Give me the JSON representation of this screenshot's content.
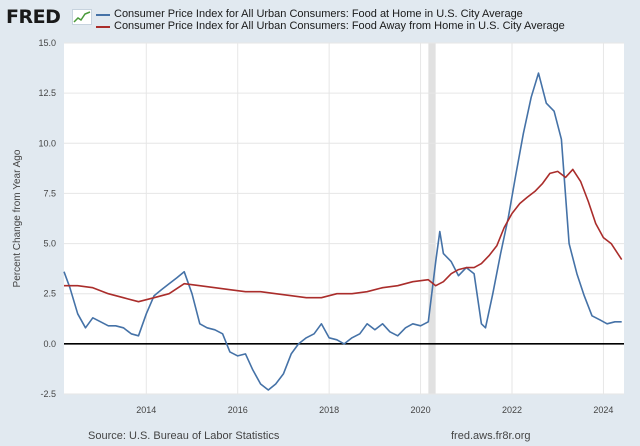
{
  "header": {
    "logo_text": "FRED",
    "logo_icon": "graph-icon"
  },
  "footer": {
    "source": "Source: U.S. Bureau of Labor Statistics",
    "url": "fred.aws.fr8r.org"
  },
  "chart_data": {
    "type": "line",
    "ylabel": "Percent Change from Year Ago",
    "xlabel": "",
    "ylim": [
      -2.5,
      15.0
    ],
    "xlim": [
      2012.2,
      2024.45
    ],
    "yticks": [
      -2.5,
      0.0,
      2.5,
      5.0,
      7.5,
      10.0,
      12.5,
      15.0
    ],
    "ytick_labels": [
      "-2.5",
      "0.0",
      "2.5",
      "5.0",
      "7.5",
      "10.0",
      "12.5",
      "15.0"
    ],
    "xticks": [
      2014,
      2016,
      2018,
      2020,
      2022,
      2024
    ],
    "xtick_labels": [
      "2014",
      "2016",
      "2018",
      "2020",
      "2022",
      "2024"
    ],
    "grid": true,
    "zero_line": true,
    "legend_position": "top",
    "recession_band": [
      2020.17,
      2020.33
    ],
    "series": [
      {
        "name": "Consumer Price Index for All Urban Consumers: Food at Home in U.S. City Average",
        "color": "#4572a7",
        "x": [
          2012.2,
          2012.33,
          2012.5,
          2012.67,
          2012.83,
          2013.0,
          2013.17,
          2013.33,
          2013.5,
          2013.67,
          2013.83,
          2014.0,
          2014.17,
          2014.33,
          2014.5,
          2014.67,
          2014.83,
          2015.0,
          2015.17,
          2015.33,
          2015.5,
          2015.67,
          2015.83,
          2016.0,
          2016.17,
          2016.33,
          2016.5,
          2016.67,
          2016.83,
          2017.0,
          2017.17,
          2017.33,
          2017.5,
          2017.67,
          2017.83,
          2018.0,
          2018.17,
          2018.33,
          2018.5,
          2018.67,
          2018.83,
          2019.0,
          2019.17,
          2019.33,
          2019.5,
          2019.67,
          2019.83,
          2020.0,
          2020.17,
          2020.33,
          2020.42,
          2020.5,
          2020.67,
          2020.83,
          2021.0,
          2021.17,
          2021.33,
          2021.42,
          2021.58,
          2021.75,
          2021.92,
          2022.08,
          2022.25,
          2022.42,
          2022.58,
          2022.75,
          2022.92,
          2023.08,
          2023.25,
          2023.42,
          2023.58,
          2023.75,
          2023.92,
          2024.08,
          2024.25,
          2024.4
        ],
        "values": [
          3.6,
          2.8,
          1.5,
          0.8,
          1.3,
          1.1,
          0.9,
          0.9,
          0.8,
          0.5,
          0.4,
          1.5,
          2.4,
          2.7,
          3.0,
          3.3,
          3.6,
          2.5,
          1.0,
          0.8,
          0.7,
          0.5,
          -0.4,
          -0.6,
          -0.5,
          -1.3,
          -2.0,
          -2.3,
          -2.0,
          -1.5,
          -0.5,
          0.0,
          0.3,
          0.5,
          1.0,
          0.3,
          0.2,
          0.0,
          0.3,
          0.5,
          1.0,
          0.7,
          1.0,
          0.6,
          0.4,
          0.8,
          1.0,
          0.9,
          1.1,
          4.1,
          5.6,
          4.5,
          4.1,
          3.4,
          3.8,
          3.5,
          1.0,
          0.8,
          2.5,
          4.5,
          6.3,
          8.4,
          10.5,
          12.3,
          13.5,
          12.0,
          11.6,
          10.2,
          5.0,
          3.5,
          2.4,
          1.4,
          1.2,
          1.0,
          1.1,
          1.1
        ]
      },
      {
        "name": "Consumer Price Index for All Urban Consumers: Food Away from Home in U.S. City Average",
        "color": "#aa2d2b",
        "x": [
          2012.2,
          2012.5,
          2012.83,
          2013.17,
          2013.5,
          2013.83,
          2014.17,
          2014.5,
          2014.83,
          2015.17,
          2015.5,
          2015.83,
          2016.17,
          2016.5,
          2016.83,
          2017.17,
          2017.5,
          2017.83,
          2018.17,
          2018.5,
          2018.83,
          2019.17,
          2019.5,
          2019.83,
          2020.17,
          2020.33,
          2020.5,
          2020.67,
          2020.83,
          2021.0,
          2021.17,
          2021.33,
          2021.5,
          2021.67,
          2021.83,
          2022.0,
          2022.17,
          2022.33,
          2022.5,
          2022.67,
          2022.83,
          2023.0,
          2023.17,
          2023.33,
          2023.5,
          2023.67,
          2023.83,
          2024.0,
          2024.17,
          2024.4
        ],
        "values": [
          2.9,
          2.9,
          2.8,
          2.5,
          2.3,
          2.1,
          2.3,
          2.5,
          3.0,
          2.9,
          2.8,
          2.7,
          2.6,
          2.6,
          2.5,
          2.4,
          2.3,
          2.3,
          2.5,
          2.5,
          2.6,
          2.8,
          2.9,
          3.1,
          3.2,
          2.9,
          3.1,
          3.5,
          3.7,
          3.8,
          3.8,
          4.0,
          4.4,
          4.9,
          5.8,
          6.5,
          7.0,
          7.3,
          7.6,
          8.0,
          8.5,
          8.6,
          8.3,
          8.7,
          8.1,
          7.1,
          6.0,
          5.3,
          5.0,
          4.2
        ]
      }
    ]
  }
}
